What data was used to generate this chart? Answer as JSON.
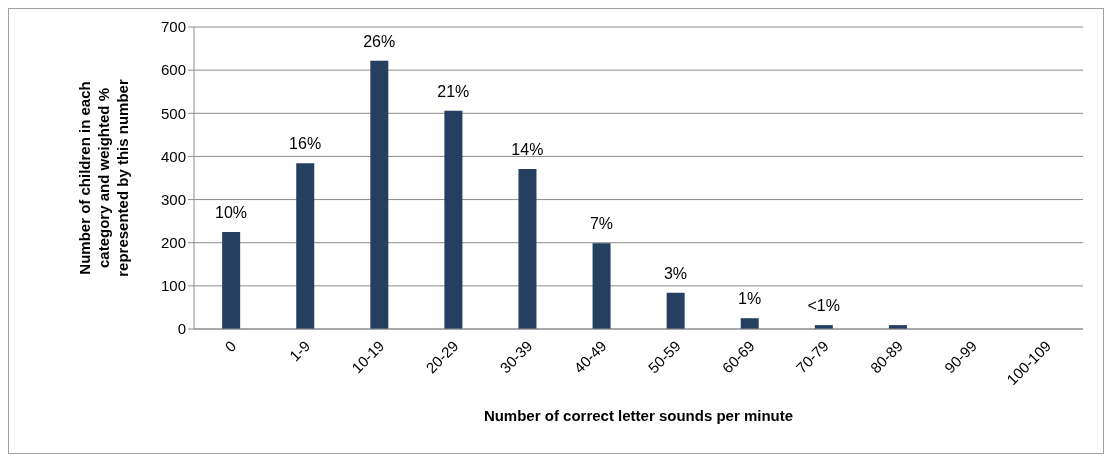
{
  "chart_data": {
    "type": "bar",
    "xlabel": "Number of correct letter sounds per minute",
    "ylabel": "Number of children in each category and weighted % represented by this number",
    "categories": [
      "0",
      "1-9",
      "10-19",
      "20-29",
      "30-39",
      "40-49",
      "50-59",
      "60-69",
      "70-79",
      "80-89",
      "90-99",
      "100-109"
    ],
    "values": [
      225,
      384,
      622,
      506,
      371,
      199,
      84,
      25,
      9,
      9,
      null,
      null
    ],
    "annotations": [
      {
        "text": "10%",
        "x": "0",
        "y": 225
      },
      {
        "text": "16%",
        "x": "1-9",
        "y": 384
      },
      {
        "text": "26%",
        "x": "10-19",
        "y": 622
      },
      {
        "text": "21%",
        "x": "20-29",
        "y": 506
      },
      {
        "text": "14%",
        "x": "30-39",
        "y": 371
      },
      {
        "text": "7%",
        "x": "40-49",
        "y": 199
      },
      {
        "text": "3%",
        "x": "50-59",
        "y": 84
      },
      {
        "text": "1%",
        "x": "60-69",
        "y": 25
      },
      {
        "text": "<1%",
        "x": "70-79",
        "y": 9
      }
    ],
    "color": "#243f60",
    "ylim": [
      0,
      700
    ],
    "yticks": [
      0,
      100,
      200,
      300,
      400,
      500,
      600,
      700
    ],
    "grid": "y"
  }
}
